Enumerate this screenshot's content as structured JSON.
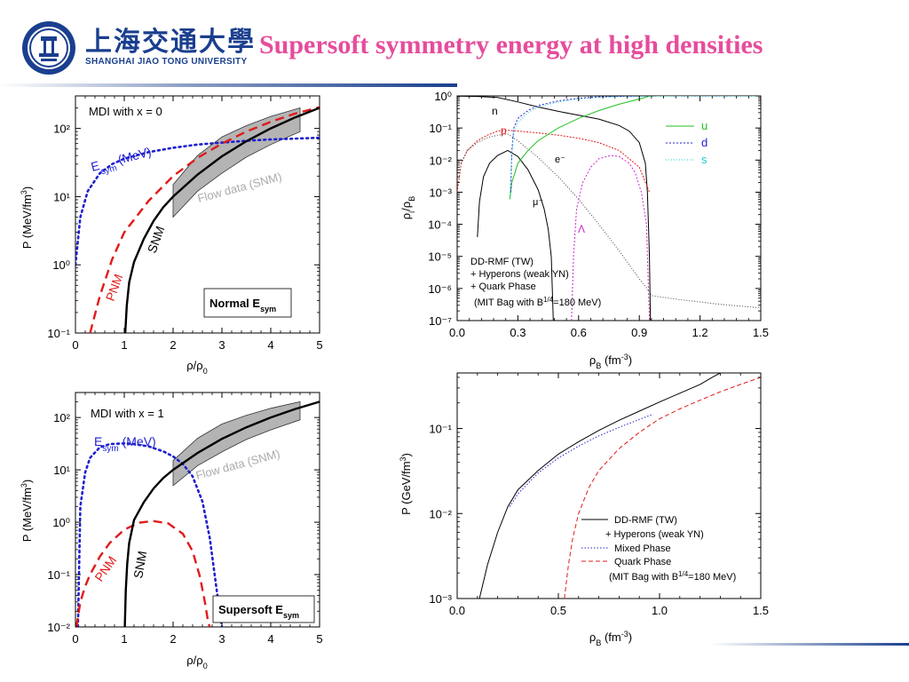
{
  "header": {
    "university_cn": "上海交通大學",
    "university_en": "SHANGHAI  JIAO TONG  UNIVERSITY",
    "title": "Supersoft symmetry energy at high densities"
  },
  "colors": {
    "title": "#e64c9c",
    "brand": "#1a3f8f",
    "esym": "#1f1fd0",
    "pnm": "#e11a1a",
    "snm": "#000000",
    "flow_band": "#b4b4b4",
    "u": "#22c022",
    "d": "#2222cc",
    "s": "#22cccc",
    "e": "#444444",
    "lambda": "#cc22cc"
  },
  "chart_data": [
    {
      "id": "mdi0",
      "type": "line",
      "yscale": "log",
      "xlim": [
        0,
        5
      ],
      "ylim": [
        0.1,
        300
      ],
      "xticks": [
        "0",
        "1",
        "2",
        "3",
        "4",
        "5"
      ],
      "yticks": [
        "10⁻¹",
        "10⁰",
        "10¹",
        "10²"
      ],
      "xlabel": "ρ/ρ₀",
      "ylabel": "P (MeV/fm³)",
      "annotations": [
        "MDI with x = 0",
        "Flow data (SNM)",
        "Normal E_sym"
      ],
      "series": [
        {
          "name": "E_sym (MeV)",
          "style": "dotted",
          "x": [
            0,
            0.1,
            0.25,
            0.5,
            0.75,
            1,
            1.5,
            2,
            2.5,
            3,
            3.5,
            4,
            4.5,
            5
          ],
          "y": [
            1,
            5,
            12,
            22,
            30,
            36,
            45,
            52,
            58,
            62,
            66,
            69,
            71,
            73
          ]
        },
        {
          "name": "PNM",
          "style": "dashed",
          "x": [
            0.3,
            0.5,
            0.75,
            1,
            1.5,
            2,
            2.5,
            3,
            3.5,
            4,
            4.5,
            5
          ],
          "y": [
            0.1,
            0.35,
            1.2,
            3,
            8.7,
            20,
            37,
            60,
            90,
            125,
            165,
            205
          ]
        },
        {
          "name": "SNM",
          "style": "solid",
          "x": [
            1.02,
            1.05,
            1.1,
            1.2,
            1.4,
            1.6,
            1.8,
            2,
            2.5,
            3,
            3.5,
            4,
            4.5,
            5
          ],
          "y": [
            0.1,
            0.25,
            0.55,
            1.1,
            2.4,
            4.4,
            7,
            10,
            21,
            39,
            65,
            100,
            145,
            200
          ]
        }
      ],
      "band": {
        "name": "Flow data (SNM)",
        "x": [
          2,
          2.5,
          3,
          3.5,
          4,
          4.6
        ],
        "lower": [
          5,
          12,
          22,
          38,
          58,
          90
        ],
        "upper": [
          15,
          40,
          75,
          110,
          150,
          200
        ]
      }
    },
    {
      "id": "mdi1",
      "type": "line",
      "yscale": "log",
      "xlim": [
        0,
        5
      ],
      "ylim": [
        0.01,
        300
      ],
      "xticks": [
        "0",
        "1",
        "2",
        "3",
        "4",
        "5"
      ],
      "yticks": [
        "10⁻²",
        "10⁻¹",
        "10⁰",
        "10¹",
        "10²"
      ],
      "xlabel": "ρ/ρ₀",
      "ylabel": "P (MeV/fm³)",
      "annotations": [
        "MDI with x = 1",
        "Flow data (SNM)",
        "Supersoft E_sym"
      ],
      "series": [
        {
          "name": "E_sym (MeV)",
          "style": "dotted",
          "x": [
            0.05,
            0.1,
            0.2,
            0.3,
            0.5,
            0.7,
            1,
            1.2,
            1.5,
            1.8,
            2,
            2.2,
            2.4,
            2.6,
            2.75,
            2.85,
            2.95,
            3
          ],
          "y": [
            0.01,
            2,
            9,
            17,
            27,
            31,
            32,
            31,
            28,
            22.5,
            18,
            13,
            7.5,
            2.5,
            0.5,
            0.1,
            0.02,
            0.01
          ]
        },
        {
          "name": "PNM",
          "style": "dashed",
          "x": [
            0.02,
            0.1,
            0.2,
            0.3,
            0.5,
            0.7,
            1,
            1.3,
            1.6,
            1.9,
            2.2,
            2.4,
            2.55,
            2.65,
            2.72,
            2.75
          ],
          "y": [
            0.01,
            0.03,
            0.06,
            0.1,
            0.22,
            0.4,
            0.72,
            0.98,
            1.05,
            0.95,
            0.6,
            0.28,
            0.09,
            0.03,
            0.012,
            0.01
          ]
        },
        {
          "name": "SNM",
          "style": "solid",
          "x": [
            1.01,
            1.03,
            1.06,
            1.1,
            1.2,
            1.4,
            1.6,
            1.8,
            2,
            2.5,
            3,
            3.5,
            4,
            4.5,
            5
          ],
          "y": [
            0.01,
            0.05,
            0.16,
            0.4,
            1.1,
            2.4,
            4.4,
            7,
            10,
            21,
            39,
            65,
            100,
            145,
            200
          ]
        }
      ],
      "band": {
        "name": "Flow data (SNM)",
        "x": [
          2,
          2.5,
          3,
          3.5,
          4,
          4.6
        ],
        "lower": [
          5,
          12,
          22,
          38,
          58,
          90
        ],
        "upper": [
          15,
          40,
          75,
          110,
          150,
          200
        ]
      }
    },
    {
      "id": "fractions",
      "type": "line",
      "yscale": "log",
      "xlim": [
        0,
        1.5
      ],
      "ylim": [
        1e-07,
        1
      ],
      "xticks": [
        "0.0",
        "0.3",
        "0.6",
        "0.9",
        "1.2",
        "1.5"
      ],
      "yticks": [
        "10⁻⁷",
        "10⁻⁶",
        "10⁻⁵",
        "10⁻⁴",
        "10⁻³",
        "10⁻²",
        "10⁻¹",
        "10⁰"
      ],
      "xlabel": "ρ_B (fm⁻³)",
      "ylabel": "ρᵢ/ρ_B",
      "legend_position": "top-right",
      "annotations": [
        "DD-RMF (TW)",
        "+ Hyperons (weak YN)",
        "+ Quark Phase",
        "(MIT Bag with B¹ᐟ⁴=180 MeV)"
      ],
      "series": [
        {
          "name": "n",
          "x": [
            0,
            0.1,
            0.2,
            0.3,
            0.4,
            0.5,
            0.6,
            0.7,
            0.8,
            0.85,
            0.9,
            0.93,
            0.94,
            0.95,
            0.955
          ],
          "y": [
            0.99,
            0.96,
            0.9,
            0.65,
            0.45,
            0.33,
            0.25,
            0.19,
            0.12,
            0.08,
            0.035,
            0.008,
            0.001,
            1e-05,
            1e-07
          ]
        },
        {
          "name": "p",
          "x": [
            0,
            0.02,
            0.05,
            0.1,
            0.15,
            0.2,
            0.25,
            0.3,
            0.4,
            0.5,
            0.6,
            0.7,
            0.8,
            0.9,
            0.95
          ],
          "y": [
            0.001,
            0.008,
            0.02,
            0.04,
            0.06,
            0.08,
            0.085,
            0.08,
            0.07,
            0.06,
            0.048,
            0.035,
            0.02,
            0.006,
            0.001
          ]
        },
        {
          "name": "e⁻",
          "x": [
            0.02,
            0.05,
            0.1,
            0.15,
            0.2,
            0.25,
            0.3,
            0.4,
            0.5,
            0.6,
            0.7,
            0.8,
            0.9,
            0.95,
            0.96,
            1.0,
            1.1,
            1.2,
            1.3,
            1.4,
            1.5
          ],
          "y": [
            0.008,
            0.02,
            0.035,
            0.05,
            0.06,
            0.065,
            0.04,
            0.012,
            0.003,
            0.0006,
            0.0001,
            1.5e-05,
            2e-06,
            8e-07,
            6e-07,
            5.5e-07,
            4.5e-07,
            3.8e-07,
            3.2e-07,
            2.8e-07,
            2.5e-07
          ]
        },
        {
          "name": "μ⁻",
          "x": [
            0.1,
            0.11,
            0.13,
            0.16,
            0.2,
            0.25,
            0.3,
            0.35,
            0.4,
            0.43,
            0.45,
            0.465,
            0.475
          ],
          "y": [
            4e-05,
            0.0005,
            0.003,
            0.008,
            0.014,
            0.02,
            0.013,
            0.005,
            0.0012,
            0.0003,
            7e-05,
            1e-05,
            1e-07
          ]
        },
        {
          "name": "Λ",
          "x": [
            0.565,
            0.575,
            0.59,
            0.62,
            0.66,
            0.7,
            0.76,
            0.8,
            0.85,
            0.88,
            0.91,
            0.935,
            0.95
          ],
          "y": [
            1e-07,
            1e-05,
            0.0003,
            0.002,
            0.006,
            0.011,
            0.014,
            0.013,
            0.008,
            0.004,
            0.001,
            0.0001,
            1e-07
          ]
        },
        {
          "name": "u",
          "x": [
            0.26,
            0.27,
            0.3,
            0.35,
            0.4,
            0.5,
            0.6,
            0.7,
            0.8,
            0.9,
            0.95,
            1.0,
            1.5
          ],
          "y": [
            0.0006,
            0.002,
            0.008,
            0.02,
            0.04,
            0.1,
            0.2,
            0.35,
            0.55,
            0.8,
            0.98,
            1.0,
            1.0
          ]
        },
        {
          "name": "d",
          "x": [
            0.265,
            0.27,
            0.28,
            0.3,
            0.35,
            0.4,
            0.5,
            0.6,
            0.7,
            0.8,
            0.9,
            0.95,
            1.0,
            1.5
          ],
          "y": [
            0.001,
            0.02,
            0.1,
            0.2,
            0.35,
            0.5,
            0.7,
            0.85,
            0.93,
            0.97,
            0.99,
            1.0,
            1.0,
            1.0
          ]
        },
        {
          "name": "s",
          "x": [
            0.26,
            0.27,
            0.28,
            0.3,
            0.35,
            0.4,
            0.5,
            0.6,
            0.7,
            0.8,
            0.9,
            0.95,
            1.0,
            1.5
          ],
          "y": [
            0.0008,
            0.015,
            0.08,
            0.15,
            0.3,
            0.45,
            0.65,
            0.8,
            0.9,
            0.95,
            0.98,
            1.0,
            1.0,
            1.0
          ]
        }
      ]
    },
    {
      "id": "eos",
      "type": "line",
      "yscale": "log",
      "xlim": [
        0,
        1.5
      ],
      "ylim": [
        0.001,
        0.45
      ],
      "xticks": [
        "0.0",
        "0.5",
        "1.0",
        "1.5"
      ],
      "yticks": [
        "10⁻³",
        "10⁻²",
        "10⁻¹"
      ],
      "xlabel": "ρ_B (fm⁻³)",
      "ylabel": "P (GeV/fm³)",
      "legend_position": "bottom-right",
      "annotations": [
        "+ Hyperons (weak YN)",
        "(MIT Bag with B¹ᐟ⁴=180 MeV)"
      ],
      "series": [
        {
          "name": "DD-RMF (TW)",
          "style": "solid",
          "x": [
            0.11,
            0.15,
            0.2,
            0.25,
            0.3,
            0.4,
            0.5,
            0.6,
            0.7,
            0.8,
            0.9,
            1.0,
            1.1,
            1.2,
            1.26,
            1.3
          ],
          "y": [
            0.001,
            0.0025,
            0.006,
            0.012,
            0.019,
            0.032,
            0.05,
            0.07,
            0.095,
            0.125,
            0.16,
            0.205,
            0.26,
            0.33,
            0.4,
            0.45
          ]
        },
        {
          "name": "Mixed Phase",
          "style": "dotted",
          "x": [
            0.26,
            0.3,
            0.4,
            0.5,
            0.6,
            0.7,
            0.8,
            0.9,
            0.96
          ],
          "y": [
            0.012,
            0.017,
            0.03,
            0.045,
            0.062,
            0.082,
            0.103,
            0.128,
            0.145
          ]
        },
        {
          "name": "Quark Phase",
          "style": "dashed",
          "x": [
            0.53,
            0.55,
            0.57,
            0.6,
            0.65,
            0.7,
            0.8,
            0.9,
            1.0,
            1.1,
            1.2,
            1.3,
            1.4,
            1.5
          ],
          "y": [
            0.001,
            0.0025,
            0.005,
            0.01,
            0.02,
            0.032,
            0.058,
            0.09,
            0.13,
            0.17,
            0.215,
            0.27,
            0.33,
            0.4
          ]
        }
      ]
    }
  ]
}
